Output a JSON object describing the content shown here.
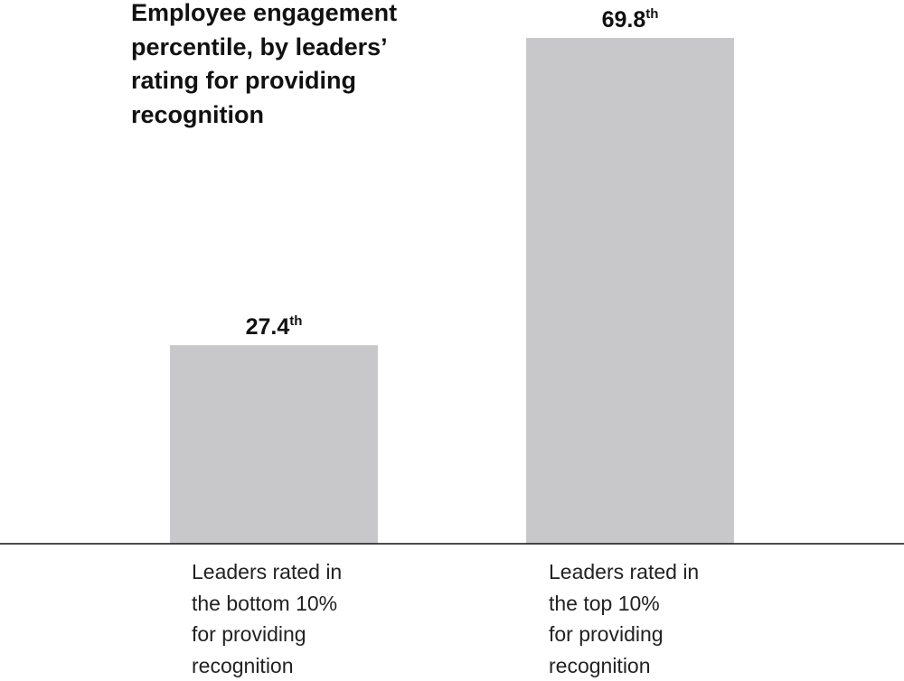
{
  "chart_data": {
    "type": "bar",
    "title": "Employee engagement\npercentile, by leaders’\nrating for providing\nrecognition",
    "categories": [
      "Leaders rated in\nthe bottom 10%\nfor providing\nrecognition",
      "Leaders rated in\nthe top 10%\nfor providing\nrecognition"
    ],
    "values": [
      27.4,
      69.8
    ],
    "value_labels": [
      "27.4th",
      "69.8th"
    ],
    "color": "#c8c8ca"
  }
}
